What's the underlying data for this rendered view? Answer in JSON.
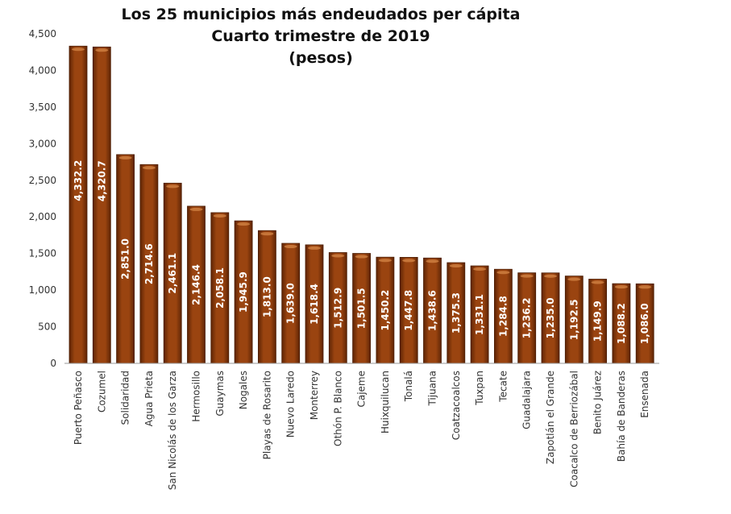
{
  "chart_data": {
    "type": "bar",
    "title": [
      "Los 25 municipios más endeudados per cápita",
      "Cuarto trimestre de 2019",
      "(pesos)"
    ],
    "xlabel": "",
    "ylabel": "",
    "ylim": [
      0,
      4500
    ],
    "yticks": [
      0,
      500,
      1000,
      1500,
      2000,
      2500,
      3000,
      3500,
      4000,
      4500
    ],
    "ytick_labels": [
      "0",
      "500",
      "1,000",
      "1,500",
      "2,000",
      "2,500",
      "3,000",
      "3,500",
      "4,000",
      "4,500"
    ],
    "grid": false,
    "bar_color": "#8B3A0A",
    "categories": [
      "Puerto Peñasco",
      "Cozumel",
      "Solidaridad",
      "Agua Prieta",
      "San Nicolás de los Garza",
      "Hermosillo",
      "Guaymas",
      "Nogales",
      "Playas de Rosarito",
      "Nuevo Laredo",
      "Monterrey",
      "Othón P. Blanco",
      "Cajeme",
      "Huixquilucan",
      "Tonalá",
      "Tijuana",
      "Coatzacoalcos",
      "Tuxpan",
      "Tecate",
      "Guadalajara",
      "Zapotlán el Grande",
      "Coacalco de Berriozábal",
      "Benito Juárez",
      "Bahía de Banderas",
      "Ensenada"
    ],
    "values": [
      4332.2,
      4320.7,
      2851.0,
      2714.6,
      2461.1,
      2146.4,
      2058.1,
      1945.9,
      1813.0,
      1639.0,
      1618.4,
      1512.9,
      1501.5,
      1450.2,
      1447.8,
      1438.6,
      1375.3,
      1331.1,
      1284.8,
      1236.2,
      1235.0,
      1192.5,
      1149.9,
      1088.2,
      1086.0
    ],
    "value_labels": [
      "4,332.2",
      "4,320.7",
      "2,851.0",
      "2,714.6",
      "2,461.1",
      "2,146.4",
      "2,058.1",
      "1,945.9",
      "1,813.0",
      "1,639.0",
      "1,618.4",
      "1,512.9",
      "1,501.5",
      "1,450.2",
      "1,447.8",
      "1,438.6",
      "1,375.3",
      "1,331.1",
      "1,284.8",
      "1,236.2",
      "1,235.0",
      "1,192.5",
      "1,149.9",
      "1,088.2",
      "1,086.0"
    ]
  }
}
